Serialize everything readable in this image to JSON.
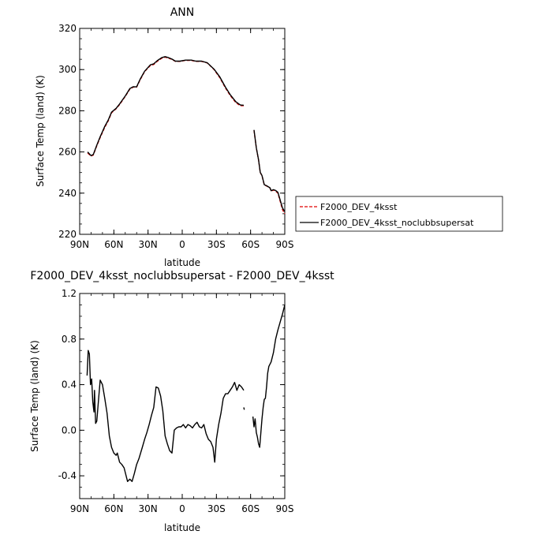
{
  "chart_data": [
    {
      "type": "line",
      "title": "ANN",
      "xlabel": "latitude",
      "ylabel": "Surface Temp (land) (K)",
      "xlim": [
        90,
        -90
      ],
      "ylim": [
        220,
        320
      ],
      "x_ticks": [
        90,
        60,
        30,
        0,
        -30,
        -60,
        -90
      ],
      "x_tick_labels": [
        "90N",
        "60N",
        "30N",
        "0",
        "30S",
        "60S",
        "90S"
      ],
      "y_ticks": [
        220,
        240,
        260,
        280,
        300,
        320
      ],
      "y_tick_labels": [
        "220",
        "240",
        "260",
        "280",
        "300",
        "320"
      ],
      "legend_position": "right",
      "series": [
        {
          "name": "F2000_DEV_4ksst",
          "color": "#e00000",
          "dash": "dashed",
          "segments": [
            [
              [
                83,
                259.5
              ],
              [
                80,
                258
              ],
              [
                78,
                258.5
              ],
              [
                75,
                263
              ],
              [
                72,
                267
              ],
              [
                68,
                272
              ],
              [
                65,
                275
              ],
              [
                62,
                279
              ],
              [
                58,
                281
              ],
              [
                55,
                283
              ],
              [
                50,
                287
              ],
              [
                46,
                290.5
              ],
              [
                43,
                291.5
              ],
              [
                40,
                291.5
              ],
              [
                37,
                295
              ],
              [
                33,
                299
              ],
              [
                28,
                302
              ],
              [
                25,
                302.5
              ],
              [
                22,
                304
              ],
              [
                18,
                305.5
              ],
              [
                15,
                306
              ],
              [
                12,
                305.5
              ],
              [
                9,
                305
              ],
              [
                6,
                304
              ],
              [
                2,
                304
              ],
              [
                -3,
                304.5
              ],
              [
                -8,
                304.5
              ],
              [
                -12,
                304
              ],
              [
                -17,
                304
              ],
              [
                -22,
                303.2
              ],
              [
                -28,
                300
              ],
              [
                -33,
                296
              ],
              [
                -38,
                291
              ],
              [
                -42,
                287.5
              ],
              [
                -47,
                284
              ],
              [
                -51,
                282.5
              ],
              [
                -54,
                282.5
              ]
            ],
            [
              [
                -63,
                270.5
              ],
              [
                -65,
                262
              ],
              [
                -67,
                256
              ],
              [
                -68.5,
                250
              ],
              [
                -70,
                248.5
              ],
              [
                -72,
                244
              ],
              [
                -74,
                243.5
              ],
              [
                -77,
                242.5
              ],
              [
                -78,
                241
              ],
              [
                -80,
                241.5
              ],
              [
                -82,
                241
              ],
              [
                -84,
                240
              ],
              [
                -86,
                236
              ],
              [
                -88,
                232
              ],
              [
                -90,
                230
              ]
            ]
          ]
        },
        {
          "name": "F2000_DEV_4ksst_noclubbsupersat",
          "color": "#000000",
          "dash": "solid",
          "segments": [
            [
              [
                83,
                260
              ],
              [
                80,
                258.2
              ],
              [
                78,
                258.8
              ],
              [
                75,
                263.3
              ],
              [
                72,
                267.4
              ],
              [
                68,
                272.4
              ],
              [
                65,
                275.4
              ],
              [
                62,
                279.3
              ],
              [
                58,
                281.2
              ],
              [
                55,
                283.3
              ],
              [
                50,
                287.2
              ],
              [
                46,
                290.8
              ],
              [
                43,
                291.7
              ],
              [
                40,
                291.6
              ],
              [
                37,
                295.3
              ],
              [
                33,
                299.2
              ],
              [
                28,
                302.3
              ],
              [
                25,
                302.8
              ],
              [
                22,
                304.3
              ],
              [
                18,
                305.8
              ],
              [
                15,
                306.3
              ],
              [
                12,
                305.8
              ],
              [
                9,
                305.1
              ],
              [
                6,
                304.1
              ],
              [
                2,
                304.1
              ],
              [
                -3,
                304.6
              ],
              [
                -8,
                304.6
              ],
              [
                -12,
                304.1
              ],
              [
                -17,
                304.1
              ],
              [
                -22,
                303.3
              ],
              [
                -28,
                300.2
              ],
              [
                -33,
                296.4
              ],
              [
                -38,
                291.4
              ],
              [
                -42,
                287.9
              ],
              [
                -47,
                284.4
              ],
              [
                -51,
                282.8
              ],
              [
                -54,
                282.7
              ]
            ],
            [
              [
                -63,
                270.7
              ],
              [
                -65,
                262.1
              ],
              [
                -67,
                256.1
              ],
              [
                -68.5,
                250.1
              ],
              [
                -70,
                248.6
              ],
              [
                -72,
                244.1
              ],
              [
                -74,
                243.6
              ],
              [
                -77,
                242.6
              ],
              [
                -78,
                241.2
              ],
              [
                -80,
                241.7
              ],
              [
                -82,
                241.3
              ],
              [
                -84,
                240.4
              ],
              [
                -86,
                236.6
              ],
              [
                -88,
                232.8
              ],
              [
                -90,
                231
              ]
            ]
          ]
        }
      ]
    },
    {
      "type": "line",
      "title": "F2000_DEV_4ksst_noclubbsupersat - F2000_DEV_4ksst",
      "xlabel": "latitude",
      "ylabel": "Surface Temp (land) (K)",
      "xlim": [
        90,
        -90
      ],
      "ylim": [
        -0.6,
        1.2
      ],
      "x_ticks": [
        90,
        60,
        30,
        0,
        -30,
        -60,
        -90
      ],
      "x_tick_labels": [
        "90N",
        "60N",
        "30N",
        "0",
        "30S",
        "60S",
        "90S"
      ],
      "y_ticks": [
        -0.4,
        0,
        0.4,
        0.8,
        1.2
      ],
      "y_tick_labels": [
        "-0.4",
        "0.0",
        "0.4",
        "0.8",
        "1.2"
      ],
      "series": [
        {
          "name": "",
          "color": "#000000",
          "dash": "solid",
          "segments": [
            [
              [
                83.5,
                0.48
              ],
              [
                82.5,
                0.7
              ],
              [
                81.5,
                0.67
              ],
              [
                80.5,
                0.4
              ],
              [
                79.5,
                0.45
              ],
              [
                78.5,
                0.25
              ],
              [
                77.5,
                0.16
              ],
              [
                77,
                0.35
              ],
              [
                76,
                0.06
              ],
              [
                75,
                0.08
              ],
              [
                74,
                0.2
              ],
              [
                72,
                0.44
              ],
              [
                70,
                0.4
              ],
              [
                68,
                0.28
              ],
              [
                66,
                0.15
              ],
              [
                64,
                -0.05
              ],
              [
                62,
                -0.15
              ],
              [
                60,
                -0.2
              ],
              [
                58,
                -0.22
              ],
              [
                57,
                -0.2
              ],
              [
                55,
                -0.28
              ],
              [
                53,
                -0.3
              ],
              [
                51,
                -0.33
              ],
              [
                48,
                -0.45
              ],
              [
                46,
                -0.43
              ],
              [
                44,
                -0.45
              ],
              [
                42,
                -0.38
              ],
              [
                40,
                -0.3
              ],
              [
                38,
                -0.25
              ],
              [
                35,
                -0.15
              ],
              [
                33,
                -0.08
              ],
              [
                31,
                -0.02
              ],
              [
                29,
                0.05
              ],
              [
                27,
                0.13
              ],
              [
                25,
                0.2
              ],
              [
                23,
                0.38
              ],
              [
                21,
                0.37
              ],
              [
                19,
                0.3
              ],
              [
                17,
                0.17
              ],
              [
                15,
                -0.05
              ],
              [
                13,
                -0.12
              ],
              [
                11,
                -0.18
              ],
              [
                9,
                -0.2
              ],
              [
                7,
                0
              ],
              [
                5,
                0.02
              ],
              [
                3,
                0.03
              ],
              [
                1,
                0.03
              ],
              [
                -1,
                0.05
              ],
              [
                -3,
                0.02
              ],
              [
                -5,
                0.05
              ],
              [
                -7,
                0.04
              ],
              [
                -9,
                0.02
              ],
              [
                -11,
                0.05
              ],
              [
                -13,
                0.07
              ],
              [
                -15,
                0.03
              ],
              [
                -17,
                0.02
              ],
              [
                -19,
                0.05
              ],
              [
                -21,
                -0.03
              ],
              [
                -23,
                -0.08
              ],
              [
                -25,
                -0.1
              ],
              [
                -27,
                -0.15
              ],
              [
                -28.5,
                -0.28
              ],
              [
                -30,
                -0.08
              ],
              [
                -32,
                0.05
              ],
              [
                -34,
                0.15
              ],
              [
                -36,
                0.28
              ],
              [
                -38,
                0.32
              ],
              [
                -40,
                0.32
              ],
              [
                -42,
                0.35
              ],
              [
                -44,
                0.38
              ],
              [
                -46,
                0.42
              ],
              [
                -48,
                0.35
              ],
              [
                -50,
                0.4
              ],
              [
                -52,
                0.38
              ],
              [
                -54,
                0.35
              ]
            ],
            [
              [
                -54,
                0.2
              ],
              [
                -54.5,
                0.18
              ]
            ],
            [
              [
                -62,
                0.12
              ],
              [
                -63,
                0.03
              ],
              [
                -64,
                0.1
              ],
              [
                -65,
                -0.02
              ],
              [
                -66,
                -0.06
              ],
              [
                -67,
                -0.12
              ],
              [
                -68,
                -0.15
              ],
              [
                -69,
                -0.02
              ],
              [
                -70,
                0.1
              ],
              [
                -71,
                0.2
              ],
              [
                -72,
                0.27
              ],
              [
                -73,
                0.28
              ],
              [
                -74,
                0.38
              ],
              [
                -75,
                0.5
              ],
              [
                -76,
                0.56
              ],
              [
                -78,
                0.6
              ],
              [
                -80,
                0.68
              ],
              [
                -82,
                0.8
              ],
              [
                -84,
                0.88
              ],
              [
                -86,
                0.95
              ],
              [
                -88,
                1.02
              ],
              [
                -90,
                1.1
              ]
            ]
          ]
        }
      ]
    }
  ]
}
